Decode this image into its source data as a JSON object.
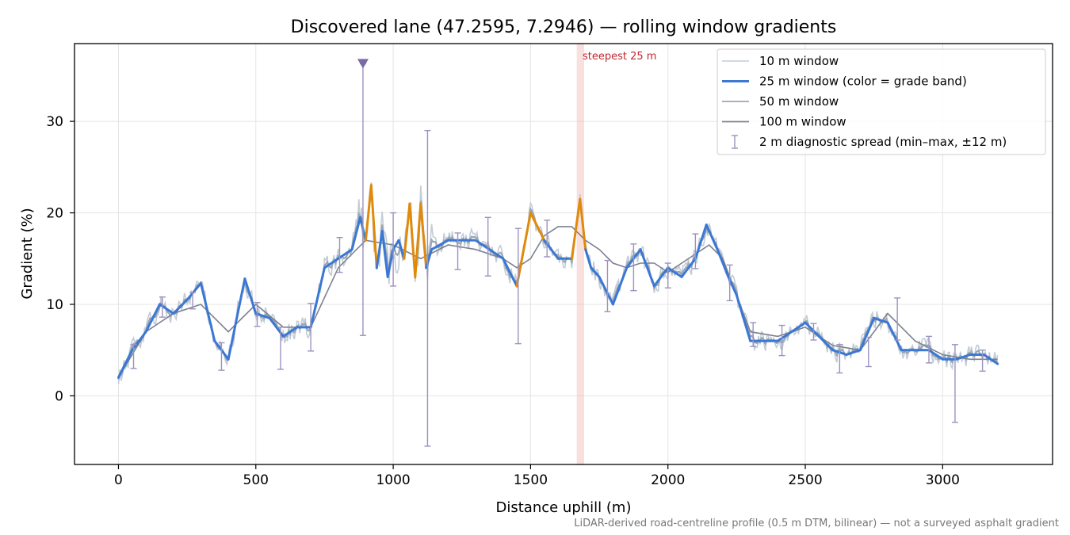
{
  "chart_data": {
    "type": "line",
    "title": "Discovered lane (47.2595, 7.2946) — rolling window gradients",
    "xlabel": "Distance uphill (m)",
    "ylabel": "Gradient (%)",
    "xlim": [
      -160,
      3400
    ],
    "ylim": [
      -7.5,
      38.5
    ],
    "xticks": [
      0,
      500,
      1000,
      1500,
      2000,
      2500,
      3000
    ],
    "yticks": [
      0,
      10,
      20,
      30
    ],
    "grid": true,
    "legend_position": "top-right",
    "colors": {
      "w10": "#c3ccd6",
      "w25": "#3a78d4",
      "w25_steep": "#e08a0b",
      "w50": "#9aa6b4",
      "w100": "#7c8290",
      "spread": "#9c92bf",
      "band": "#f4b7b7",
      "annotation": "#c0262e"
    },
    "series": [
      {
        "name": "25 m window (color = grade band)",
        "x": [
          0,
          50,
          100,
          150,
          200,
          250,
          300,
          350,
          400,
          460,
          500,
          550,
          600,
          650,
          700,
          750,
          800,
          850,
          880,
          900,
          920,
          940,
          960,
          980,
          1000,
          1020,
          1040,
          1060,
          1080,
          1100,
          1120,
          1140,
          1200,
          1250,
          1300,
          1350,
          1400,
          1450,
          1500,
          1550,
          1600,
          1650,
          1680,
          1700,
          1720,
          1750,
          1800,
          1850,
          1900,
          1950,
          2000,
          2050,
          2100,
          2140,
          2180,
          2220,
          2250,
          2300,
          2350,
          2400,
          2450,
          2500,
          2550,
          2600,
          2650,
          2700,
          2750,
          2800,
          2850,
          2900,
          2950,
          3000,
          3050,
          3100,
          3150,
          3200
        ],
        "y": [
          2,
          5,
          7,
          10,
          9,
          10.5,
          12.3,
          6,
          4,
          12.8,
          9,
          8.5,
          6.5,
          7.5,
          7.5,
          14,
          15,
          16,
          19.5,
          17,
          23,
          14,
          18,
          13,
          16,
          17,
          15,
          21,
          13,
          21,
          14,
          16,
          17,
          17,
          17,
          16,
          15,
          12,
          20,
          17,
          15,
          15,
          21.5,
          16,
          14,
          13,
          10,
          14,
          16,
          12,
          14,
          13,
          15,
          18.7,
          16,
          13,
          11,
          6,
          6,
          6,
          7,
          8,
          6.5,
          5,
          4.5,
          5,
          8.5,
          8,
          5,
          5,
          5,
          4,
          4,
          4.5,
          4.5,
          3.5
        ]
      },
      {
        "name": "100 m window",
        "x": [
          0,
          100,
          200,
          300,
          400,
          500,
          600,
          700,
          800,
          900,
          1000,
          1100,
          1200,
          1300,
          1400,
          1450,
          1500,
          1550,
          1600,
          1650,
          1700,
          1750,
          1800,
          1850,
          1900,
          1950,
          2000,
          2050,
          2100,
          2150,
          2200,
          2250,
          2300,
          2400,
          2500,
          2600,
          2700,
          2800,
          2900,
          3000,
          3100,
          3200
        ],
        "y": [
          2,
          7,
          9,
          10,
          7,
          10,
          7.5,
          7.5,
          14,
          17,
          16.5,
          15,
          16.5,
          16,
          15,
          14,
          15,
          17.5,
          18.5,
          18.5,
          17,
          16,
          14.5,
          14,
          14.5,
          14.5,
          13.5,
          14.5,
          15.5,
          16.5,
          15,
          11,
          7,
          6.5,
          7.5,
          5.5,
          5,
          9,
          6,
          4.5,
          4,
          4
        ]
      }
    ],
    "spread_bars": [
      {
        "x": 55,
        "low": 3,
        "high": 5.6
      },
      {
        "x": 160,
        "low": 8.6,
        "high": 10.8
      },
      {
        "x": 270,
        "low": 9.5,
        "high": 11.3
      },
      {
        "x": 375,
        "low": 2.8,
        "high": 5.8
      },
      {
        "x": 505,
        "low": 7.6,
        "high": 10.2
      },
      {
        "x": 590,
        "low": 2.9,
        "high": 7.5
      },
      {
        "x": 700,
        "low": 4.9,
        "high": 10.1
      },
      {
        "x": 805,
        "low": 13.5,
        "high": 17.3
      },
      {
        "x": 890,
        "low": 6.6,
        "high": 36.3
      },
      {
        "x": 1000,
        "low": 12,
        "high": 20
      },
      {
        "x": 1125,
        "low": -5.5,
        "high": 29
      },
      {
        "x": 1235,
        "low": 13.8,
        "high": 17.8
      },
      {
        "x": 1345,
        "low": 13.1,
        "high": 19.5
      },
      {
        "x": 1455,
        "low": 5.7,
        "high": 18.3
      },
      {
        "x": 1560,
        "low": 15.2,
        "high": 19.2
      },
      {
        "x": 1780,
        "low": 9.2,
        "high": 14.8
      },
      {
        "x": 1875,
        "low": 11.5,
        "high": 16.6
      },
      {
        "x": 2000,
        "low": 11.8,
        "high": 14.5
      },
      {
        "x": 2100,
        "low": 13.9,
        "high": 17.7
      },
      {
        "x": 2225,
        "low": 10.4,
        "high": 14.3
      },
      {
        "x": 2310,
        "low": 5.4,
        "high": 8
      },
      {
        "x": 2415,
        "low": 4.4,
        "high": 7.7
      },
      {
        "x": 2530,
        "low": 6.1,
        "high": 7.9
      },
      {
        "x": 2625,
        "low": 2.5,
        "high": 5.6
      },
      {
        "x": 2730,
        "low": 3.2,
        "high": 6.4
      },
      {
        "x": 2835,
        "low": 6.1,
        "high": 10.7
      },
      {
        "x": 2950,
        "low": 3.6,
        "high": 6.5
      },
      {
        "x": 3045,
        "low": -2.9,
        "high": 5.6
      },
      {
        "x": 3145,
        "low": 2.7,
        "high": 5
      }
    ],
    "steepest_band": {
      "x_start": 1668,
      "x_end": 1695,
      "label": "steepest 25 m"
    },
    "max_marker": {
      "x": 890,
      "y": 36.3
    },
    "legend": [
      {
        "key": "w10",
        "label": "10 m window",
        "style": "line-thin"
      },
      {
        "key": "w25",
        "label": "25 m window (color = grade band)",
        "style": "line-thick"
      },
      {
        "key": "w50",
        "label": "50 m window",
        "style": "line"
      },
      {
        "key": "w100",
        "label": "100 m window",
        "style": "line"
      },
      {
        "key": "spread",
        "label": "2 m diagnostic spread (min–max, ±12 m)",
        "style": "errorbar"
      }
    ],
    "footnote": "LiDAR-derived road-centreline profile (0.5 m DTM, bilinear) — not a surveyed asphalt gradient"
  }
}
